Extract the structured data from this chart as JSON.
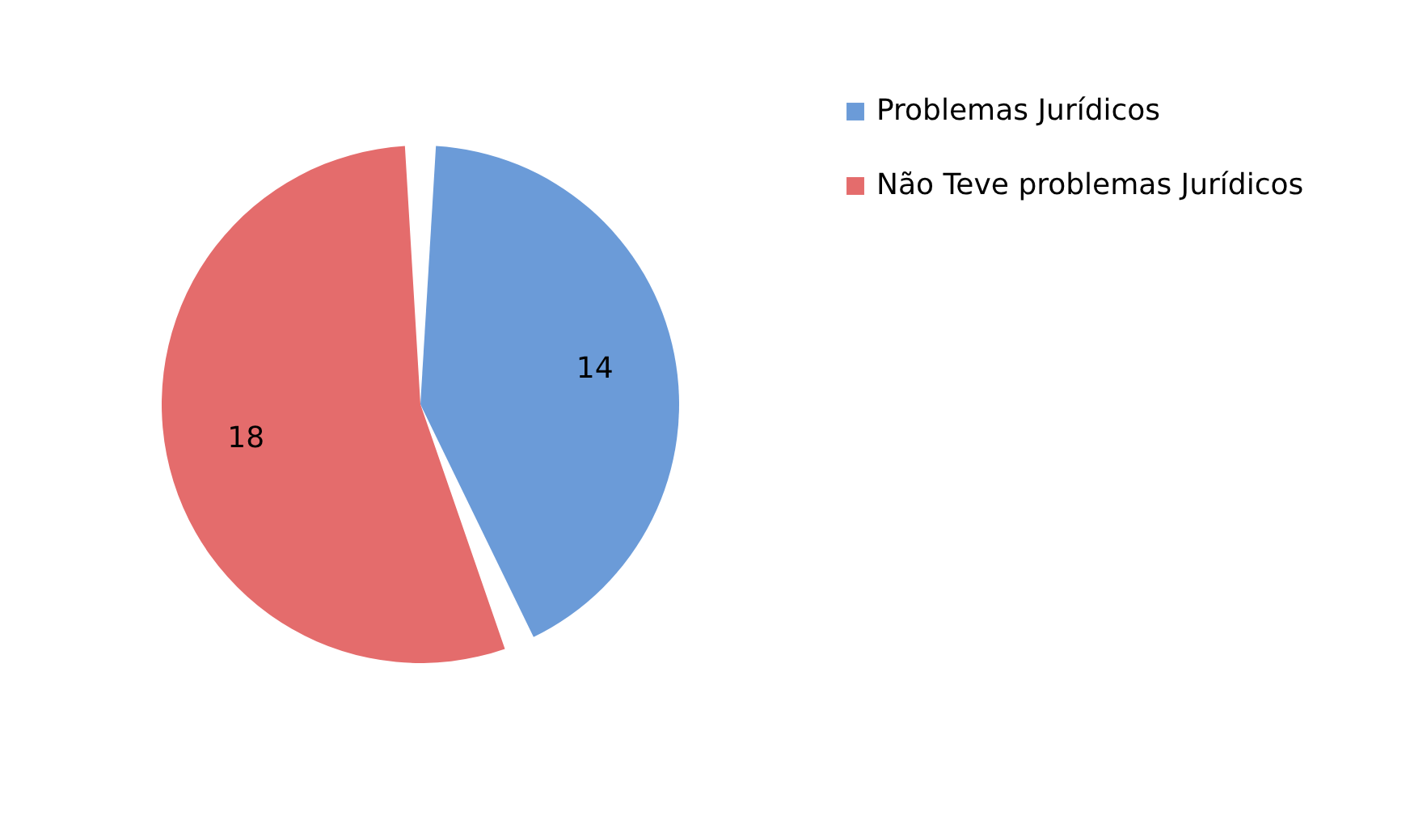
{
  "chart_data": {
    "type": "pie",
    "categories": [
      "Problemas Jurídicos",
      "Não Teve problemas Jurídicos"
    ],
    "values": [
      14,
      18
    ],
    "colors": [
      "#6b9bd8",
      "#e46c6c"
    ],
    "data_labels": true,
    "legend": "right"
  }
}
